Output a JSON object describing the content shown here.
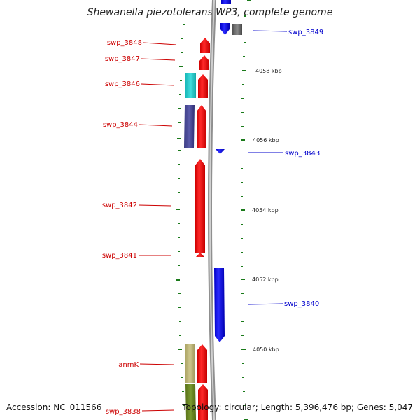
{
  "title": "Shewanella piezotolerans WP3, complete genome",
  "footer": {
    "accession": "Accession: NC_011566",
    "summary": "Topology: circular; Length: 5,396,476 bp; Genes: 5,047"
  },
  "colors": {
    "forward_gene": "#ff0000",
    "reverse_gene": "#0000ff",
    "forward_label": "#cc0000",
    "reverse_label": "#0000cc",
    "backbone": "#9a9a9a",
    "tick": "#1a7a1a"
  },
  "scale_labels": [
    "4058 kbp",
    "4056 kbp",
    "4054 kbp",
    "4052 kbp",
    "4050 kbp"
  ],
  "forward_labels": [
    "swp_3848",
    "swp_3847",
    "swp_3846",
    "swp_3844",
    "swp_3842",
    "swp_3841",
    "anmK",
    "swp_3838"
  ],
  "reverse_labels": [
    "swp_3849",
    "swp_3843",
    "swp_3840"
  ]
}
